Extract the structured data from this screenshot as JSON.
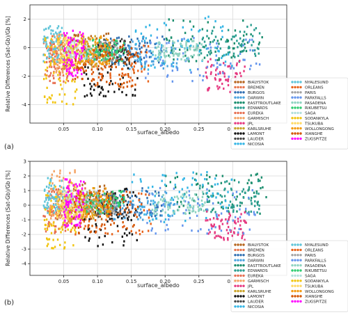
{
  "chart_data": [
    {
      "type": "scatter",
      "panel_label": "(a)",
      "xlabel": "surface_albedo",
      "ylabel": "Relative Differences (Sat-Gb)/Gb [%]",
      "xlim": [
        0.0,
        0.38
      ],
      "ylim": [
        -5.3,
        3.0
      ],
      "xticks": [
        0.05,
        0.1,
        0.15,
        0.2,
        0.25,
        0.3
      ],
      "xtick_labels": [
        "0.05",
        "0.10",
        "0.15",
        "0.20",
        "0.25",
        "0.30"
      ],
      "yticks": [
        -4,
        -2,
        0,
        2
      ],
      "ytick_labels": [
        "-4",
        "-2",
        "0",
        "2"
      ],
      "grid": true,
      "legend_position": "bottom-right",
      "series": [
        {
          "name": "BIALYSTOK",
          "color": "#b5651d",
          "xr": [
            0.04,
            0.12
          ],
          "yr": [
            -1.5,
            1.0
          ]
        },
        {
          "name": "BREMEN",
          "color": "#e8734a",
          "xr": [
            0.03,
            0.09
          ],
          "yr": [
            -1.5,
            0.9
          ]
        },
        {
          "name": "BURGOS",
          "color": "#2b6cb0",
          "xr": [
            0.1,
            0.2
          ],
          "yr": [
            -1.2,
            0.8
          ]
        },
        {
          "name": "DARWIN",
          "color": "#4aa3df",
          "xr": [
            0.12,
            0.22
          ],
          "yr": [
            -1.5,
            0.5
          ]
        },
        {
          "name": "EASTTROUTLAKE",
          "color": "#1b8e6e",
          "xr": [
            0.2,
            0.35
          ],
          "yr": [
            -1.0,
            2.0
          ]
        },
        {
          "name": "EDWARDS",
          "color": "#2a9d8f",
          "xr": [
            0.25,
            0.34
          ],
          "yr": [
            -0.8,
            1.6
          ]
        },
        {
          "name": "EUREKA",
          "color": "#e76f51",
          "xr": [
            0.02,
            0.06
          ],
          "yr": [
            -2.5,
            0.5
          ]
        },
        {
          "name": "GARMISCH",
          "color": "#f4a261",
          "xr": [
            0.03,
            0.07
          ],
          "yr": [
            -1.8,
            1.0
          ]
        },
        {
          "name": "JPL",
          "color": "#e63980",
          "xr": [
            0.26,
            0.32
          ],
          "yr": [
            -3.2,
            -0.8
          ]
        },
        {
          "name": "KARLSRUHE",
          "color": "#c9a227",
          "xr": [
            0.05,
            0.1
          ],
          "yr": [
            -1.5,
            0.8
          ]
        },
        {
          "name": "LAMONT",
          "color": "#111111",
          "xr": [
            0.08,
            0.16
          ],
          "yr": [
            -3.5,
            0.5
          ]
        },
        {
          "name": "LAUDER",
          "color": "#444444",
          "xr": [
            0.1,
            0.15
          ],
          "yr": [
            -1.2,
            0.6
          ]
        },
        {
          "name": "NICOSIA",
          "color": "#33b5e5",
          "xr": [
            0.15,
            0.3
          ],
          "yr": [
            -1.6,
            2.2
          ]
        },
        {
          "name": "NYALESUND",
          "color": "#5ec4d8",
          "xr": [
            0.02,
            0.05
          ],
          "yr": [
            -1.0,
            1.5
          ]
        },
        {
          "name": "ORLEANS",
          "color": "#e8621a",
          "xr": [
            0.06,
            0.18
          ],
          "yr": [
            -2.5,
            0.3
          ]
        },
        {
          "name": "PARIS",
          "color": "#a0a0a0",
          "xr": [
            0.08,
            0.13
          ],
          "yr": [
            -1.0,
            0.5
          ]
        },
        {
          "name": "PARKFALLS",
          "color": "#6495ed",
          "xr": [
            0.17,
            0.34
          ],
          "yr": [
            -2.4,
            0.8
          ]
        },
        {
          "name": "PASADENA",
          "color": "#8fd3c1",
          "xr": [
            0.18,
            0.26
          ],
          "yr": [
            -1.0,
            0.5
          ]
        },
        {
          "name": "RIKUBETSU",
          "color": "#2ecc71",
          "xr": [
            0.08,
            0.14
          ],
          "yr": [
            -1.0,
            0.6
          ]
        },
        {
          "name": "SAGA",
          "color": "#b2dfdb",
          "xr": [
            0.05,
            0.09
          ],
          "yr": [
            -0.8,
            0.6
          ]
        },
        {
          "name": "SODANKYLA",
          "color": "#f1c40f",
          "xr": [
            0.02,
            0.07
          ],
          "yr": [
            -4.0,
            1.0
          ]
        },
        {
          "name": "TSUKUBA",
          "color": "#ffd966",
          "xr": [
            0.04,
            0.08
          ],
          "yr": [
            -1.5,
            0.8
          ]
        },
        {
          "name": "WOLLONGONG",
          "color": "#f39c12",
          "xr": [
            0.07,
            0.12
          ],
          "yr": [
            -1.2,
            0.8
          ]
        },
        {
          "name": "XIANGHE",
          "color": "#d35400",
          "xr": [
            0.06,
            0.16
          ],
          "yr": [
            -2.8,
            0.6
          ]
        },
        {
          "name": "ZUGSPITZE",
          "color": "#ff00ff",
          "xr": [
            0.05,
            0.08
          ],
          "yr": [
            -2.0,
            1.2
          ]
        }
      ]
    },
    {
      "type": "scatter",
      "panel_label": "(b)",
      "xlabel": "surface_albedo",
      "ylabel": "Relative Differences (Sat-Gb)/Gb [%]",
      "xlim": [
        0.0,
        0.38
      ],
      "ylim": [
        -4.8,
        3.0
      ],
      "xticks": [
        0.05,
        0.1,
        0.15,
        0.2,
        0.25,
        0.3
      ],
      "xtick_labels": [
        "0.05",
        "0.10",
        "0.15",
        "0.20",
        "0.25",
        "0.30"
      ],
      "yticks": [
        -4,
        -3,
        -2,
        -1,
        0,
        1,
        2,
        3
      ],
      "ytick_labels": [
        "-4",
        "-3",
        "-2",
        "-1",
        "0",
        "1",
        "2",
        "3"
      ],
      "grid": true,
      "legend_position": "bottom-right",
      "series": [
        {
          "name": "BIALYSTOK",
          "color": "#b5651d",
          "xr": [
            0.04,
            0.12
          ],
          "yr": [
            -1.0,
            1.5
          ]
        },
        {
          "name": "BREMEN",
          "color": "#e8734a",
          "xr": [
            0.03,
            0.09
          ],
          "yr": [
            -1.0,
            1.4
          ]
        },
        {
          "name": "BURGOS",
          "color": "#2b6cb0",
          "xr": [
            0.1,
            0.2
          ],
          "yr": [
            -0.8,
            1.2
          ]
        },
        {
          "name": "DARWIN",
          "color": "#4aa3df",
          "xr": [
            0.12,
            0.22
          ],
          "yr": [
            -1.0,
            1.0
          ]
        },
        {
          "name": "EASTTROUTLAKE",
          "color": "#1b8e6e",
          "xr": [
            0.2,
            0.35
          ],
          "yr": [
            -0.6,
            2.2
          ]
        },
        {
          "name": "EDWARDS",
          "color": "#2a9d8f",
          "xr": [
            0.25,
            0.34
          ],
          "yr": [
            -0.5,
            1.8
          ]
        },
        {
          "name": "EUREKA",
          "color": "#e76f51",
          "xr": [
            0.02,
            0.06
          ],
          "yr": [
            -2.0,
            1.0
          ]
        },
        {
          "name": "GARMISCH",
          "color": "#f4a261",
          "xr": [
            0.03,
            0.07
          ],
          "yr": [
            -1.5,
            2.4
          ]
        },
        {
          "name": "JPL",
          "color": "#e63980",
          "xr": [
            0.26,
            0.32
          ],
          "yr": [
            -2.4,
            -0.4
          ]
        },
        {
          "name": "KARLSRUHE",
          "color": "#c9a227",
          "xr": [
            0.05,
            0.1
          ],
          "yr": [
            -1.0,
            1.2
          ]
        },
        {
          "name": "LAMONT",
          "color": "#111111",
          "xr": [
            0.08,
            0.16
          ],
          "yr": [
            -2.8,
            1.2
          ]
        },
        {
          "name": "LAUDER",
          "color": "#444444",
          "xr": [
            0.1,
            0.15
          ],
          "yr": [
            -0.8,
            1.0
          ]
        },
        {
          "name": "NICOSIA",
          "color": "#33b5e5",
          "xr": [
            0.15,
            0.3
          ],
          "yr": [
            -1.2,
            2.5
          ]
        },
        {
          "name": "NYALESUND",
          "color": "#5ec4d8",
          "xr": [
            0.02,
            0.05
          ],
          "yr": [
            -0.6,
            2.0
          ]
        },
        {
          "name": "ORLEANS",
          "color": "#e8621a",
          "xr": [
            0.06,
            0.18
          ],
          "yr": [
            -2.0,
            1.0
          ]
        },
        {
          "name": "PARIS",
          "color": "#a0a0a0",
          "xr": [
            0.08,
            0.13
          ],
          "yr": [
            -0.6,
            0.9
          ]
        },
        {
          "name": "PARKFALLS",
          "color": "#6495ed",
          "xr": [
            0.17,
            0.34
          ],
          "yr": [
            -2.0,
            1.2
          ]
        },
        {
          "name": "PASADENA",
          "color": "#8fd3c1",
          "xr": [
            0.18,
            0.26
          ],
          "yr": [
            -0.6,
            0.9
          ]
        },
        {
          "name": "RIKUBETSU",
          "color": "#2ecc71",
          "xr": [
            0.08,
            0.14
          ],
          "yr": [
            -0.6,
            1.0
          ]
        },
        {
          "name": "SAGA",
          "color": "#b2dfdb",
          "xr": [
            0.05,
            0.09
          ],
          "yr": [
            -0.4,
            1.0
          ]
        },
        {
          "name": "SODANKYLA",
          "color": "#f1c40f",
          "xr": [
            0.02,
            0.07
          ],
          "yr": [
            -3.0,
            1.6
          ]
        },
        {
          "name": "TSUKUBA",
          "color": "#ffd966",
          "xr": [
            0.04,
            0.08
          ],
          "yr": [
            -1.0,
            1.2
          ]
        },
        {
          "name": "WOLLONGONG",
          "color": "#f39c12",
          "xr": [
            0.07,
            0.12
          ],
          "yr": [
            -0.8,
            1.2
          ]
        },
        {
          "name": "XIANGHE",
          "color": "#d35400",
          "xr": [
            0.06,
            0.16
          ],
          "yr": [
            -2.0,
            1.0
          ]
        },
        {
          "name": "ZUGSPITZE",
          "color": "#ff00ff",
          "xr": [
            0.05,
            0.08
          ],
          "yr": [
            -1.5,
            1.8
          ]
        }
      ]
    }
  ]
}
